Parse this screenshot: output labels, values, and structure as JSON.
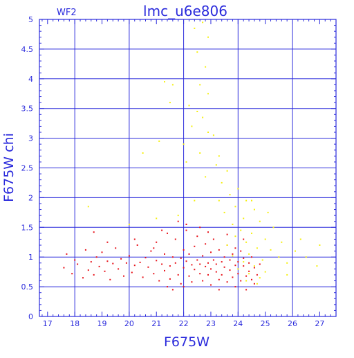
{
  "chart_data": {
    "type": "scatter",
    "title": "lmc_u6e806",
    "panel_label": "WF2",
    "xlabel": "F675W",
    "ylabel": "F675W  chi",
    "xlim": [
      16.7,
      27.6
    ],
    "ylim": [
      0,
      5
    ],
    "x_ticks": [
      "17",
      "18",
      "19",
      "20",
      "21",
      "22",
      "23",
      "24",
      "25",
      "26",
      "27"
    ],
    "y_ticks": [
      "0",
      "0.5",
      "1",
      "1.5",
      "2",
      "2.5",
      "3",
      "3.5",
      "4",
      "4.5",
      "5"
    ],
    "grid": true,
    "colors": {
      "axis": "#2a2adc",
      "grid": "#2a2adc",
      "red_series": "#e8141c",
      "yellow_series": "#f5f010"
    },
    "series": [
      {
        "color": "#e8141c",
        "points": [
          [
            17.6,
            0.82
          ],
          [
            17.7,
            1.05
          ],
          [
            17.9,
            0.72
          ],
          [
            18.0,
            0.95
          ],
          [
            18.1,
            0.88
          ],
          [
            18.3,
            0.65
          ],
          [
            18.4,
            1.12
          ],
          [
            18.5,
            0.78
          ],
          [
            18.6,
            0.92
          ],
          [
            18.7,
            0.7
          ],
          [
            18.8,
            1.0
          ],
          [
            18.9,
            0.84
          ],
          [
            19.0,
            1.08
          ],
          [
            19.1,
            0.76
          ],
          [
            19.2,
            0.93
          ],
          [
            19.3,
            0.62
          ],
          [
            19.4,
            0.89
          ],
          [
            19.5,
            1.15
          ],
          [
            19.6,
            0.8
          ],
          [
            19.7,
            0.97
          ],
          [
            19.8,
            0.68
          ],
          [
            19.9,
            0.9
          ],
          [
            20.0,
            1.02
          ],
          [
            20.1,
            0.74
          ],
          [
            20.2,
            0.86
          ],
          [
            20.3,
            1.2
          ],
          [
            20.4,
            0.91
          ],
          [
            20.5,
            0.66
          ],
          [
            20.6,
            0.99
          ],
          [
            20.7,
            0.83
          ],
          [
            20.8,
            1.1
          ],
          [
            20.9,
            0.72
          ],
          [
            21.0,
            0.94
          ],
          [
            21.0,
            1.25
          ],
          [
            21.1,
            0.6
          ],
          [
            21.2,
            0.88
          ],
          [
            21.3,
            1.05
          ],
          [
            21.3,
            0.77
          ],
          [
            21.4,
            1.4
          ],
          [
            21.5,
            0.85
          ],
          [
            21.5,
            0.63
          ],
          [
            21.6,
            1.0
          ],
          [
            21.7,
            0.9
          ],
          [
            21.7,
            1.3
          ],
          [
            21.8,
            0.7
          ],
          [
            21.9,
            0.98
          ],
          [
            21.9,
            0.55
          ],
          [
            22.0,
            1.12
          ],
          [
            22.0,
            0.82
          ],
          [
            22.1,
            0.93
          ],
          [
            22.1,
            1.45
          ],
          [
            22.2,
            0.68
          ],
          [
            22.2,
            1.05
          ],
          [
            22.3,
            0.87
          ],
          [
            22.3,
            0.58
          ],
          [
            22.4,
            1.18
          ],
          [
            22.4,
            0.79
          ],
          [
            22.5,
            0.95
          ],
          [
            22.5,
            1.35
          ],
          [
            22.6,
            0.72
          ],
          [
            22.6,
            0.88
          ],
          [
            22.7,
            1.02
          ],
          [
            22.7,
            0.6
          ],
          [
            22.8,
            0.84
          ],
          [
            22.8,
            1.22
          ],
          [
            22.9,
            0.9
          ],
          [
            22.9,
            0.7
          ],
          [
            23.0,
            1.08
          ],
          [
            23.0,
            0.8
          ],
          [
            23.0,
            0.53
          ],
          [
            23.1,
            0.95
          ],
          [
            23.1,
            1.3
          ],
          [
            23.2,
            0.75
          ],
          [
            23.2,
            0.88
          ],
          [
            23.3,
            1.12
          ],
          [
            23.3,
            0.62
          ],
          [
            23.4,
            0.92
          ],
          [
            23.4,
            0.7
          ],
          [
            23.5,
            1.0
          ],
          [
            23.5,
            0.83
          ],
          [
            23.6,
            0.58
          ],
          [
            23.6,
            1.2
          ],
          [
            23.7,
            0.78
          ],
          [
            23.7,
            0.95
          ],
          [
            23.8,
            0.66
          ],
          [
            23.8,
            1.05
          ],
          [
            23.9,
            0.86
          ],
          [
            23.9,
            0.5
          ],
          [
            24.0,
            0.92
          ],
          [
            24.0,
            0.72
          ],
          [
            24.1,
            1.1
          ],
          [
            24.1,
            0.6
          ],
          [
            24.2,
            0.85
          ],
          [
            24.2,
            0.98
          ],
          [
            24.3,
            0.68
          ],
          [
            24.3,
            0.45
          ],
          [
            24.4,
            0.9
          ],
          [
            24.4,
            0.76
          ],
          [
            24.5,
            1.0
          ],
          [
            24.5,
            0.62
          ],
          [
            24.6,
            0.82
          ],
          [
            24.6,
            0.55
          ],
          [
            24.7,
            0.7
          ],
          [
            24.8,
            0.88
          ],
          [
            20.9,
            1.15
          ],
          [
            21.2,
            1.45
          ],
          [
            21.8,
            1.6
          ],
          [
            22.1,
            1.55
          ],
          [
            22.6,
            1.5
          ],
          [
            22.0,
            0.5
          ],
          [
            21.6,
            0.45
          ],
          [
            23.3,
            0.45
          ],
          [
            19.2,
            1.25
          ],
          [
            18.7,
            1.42
          ],
          [
            20.2,
            1.3
          ],
          [
            21.4,
            0.5
          ],
          [
            22.9,
            1.42
          ],
          [
            23.6,
            1.38
          ],
          [
            24.2,
            1.3
          ],
          [
            23.9,
            1.15
          ]
        ]
      },
      {
        "color": "#f5f010",
        "points": [
          [
            22.4,
            4.85
          ],
          [
            22.7,
            4.95
          ],
          [
            22.9,
            4.7
          ],
          [
            22.5,
            4.45
          ],
          [
            22.8,
            4.2
          ],
          [
            21.3,
            3.95
          ],
          [
            21.6,
            3.9
          ],
          [
            22.6,
            3.9
          ],
          [
            22.9,
            3.75
          ],
          [
            21.5,
            3.6
          ],
          [
            22.2,
            3.55
          ],
          [
            22.5,
            3.45
          ],
          [
            22.7,
            3.35
          ],
          [
            22.3,
            3.2
          ],
          [
            22.9,
            3.1
          ],
          [
            23.1,
            3.05
          ],
          [
            21.1,
            2.95
          ],
          [
            22.0,
            2.9
          ],
          [
            22.6,
            2.75
          ],
          [
            23.3,
            2.7
          ],
          [
            20.5,
            2.75
          ],
          [
            23.2,
            2.55
          ],
          [
            23.6,
            2.45
          ],
          [
            22.8,
            2.35
          ],
          [
            23.4,
            2.25
          ],
          [
            24.0,
            2.15
          ],
          [
            23.7,
            2.05
          ],
          [
            24.3,
            1.95
          ],
          [
            22.4,
            1.95
          ],
          [
            23.9,
            1.85
          ],
          [
            24.6,
            1.8
          ],
          [
            25.1,
            1.75
          ],
          [
            23.5,
            1.75
          ],
          [
            24.2,
            1.65
          ],
          [
            24.8,
            1.6
          ],
          [
            23.8,
            1.55
          ],
          [
            25.3,
            1.5
          ],
          [
            24.1,
            1.45
          ],
          [
            24.5,
            1.4
          ],
          [
            23.9,
            1.35
          ],
          [
            25.0,
            1.3
          ],
          [
            25.6,
            1.25
          ],
          [
            24.3,
            1.25
          ],
          [
            23.6,
            1.2
          ],
          [
            24.7,
            1.15
          ],
          [
            25.2,
            1.12
          ],
          [
            26.1,
            1.1
          ],
          [
            24.4,
            1.05
          ],
          [
            23.8,
            1.02
          ],
          [
            25.5,
            1.0
          ],
          [
            26.5,
            1.0
          ],
          [
            24.9,
            0.95
          ],
          [
            24.2,
            0.92
          ],
          [
            25.8,
            0.9
          ],
          [
            26.9,
            0.85
          ],
          [
            24.6,
            0.85
          ],
          [
            24.0,
            0.8
          ],
          [
            25.0,
            0.75
          ],
          [
            24.4,
            0.72
          ],
          [
            24.8,
            0.65
          ],
          [
            24.3,
            0.6
          ],
          [
            24.7,
            0.55
          ],
          [
            21.0,
            1.65
          ],
          [
            21.8,
            1.7
          ],
          [
            18.5,
            1.85
          ],
          [
            20.0,
            1.55
          ],
          [
            26.3,
            1.3
          ],
          [
            27.0,
            1.2
          ],
          [
            25.8,
            0.7
          ],
          [
            23.3,
            1.95
          ],
          [
            24.5,
            1.95
          ],
          [
            22.1,
            2.6
          ]
        ]
      }
    ]
  }
}
